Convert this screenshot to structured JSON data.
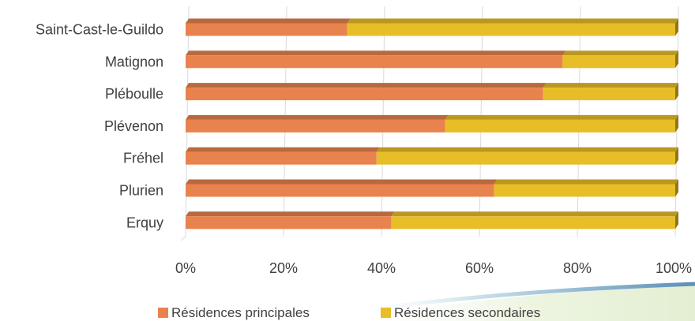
{
  "chart_data": {
    "type": "bar",
    "orientation": "horizontal",
    "stacked": "percent",
    "categories": [
      "Saint-Cast-le-Guildo",
      "Matignon",
      "Pléboulle",
      "Plévenon",
      "Fréhel",
      "Plurien",
      "Erquy"
    ],
    "series": [
      {
        "name": "Résidences principales",
        "color": "#E8834E",
        "values": [
          33,
          77,
          73,
          53,
          39,
          63,
          42
        ]
      },
      {
        "name": "Résidences secondaires",
        "color": "#E8BE28",
        "values": [
          67,
          23,
          27,
          47,
          61,
          37,
          58
        ]
      }
    ],
    "x_ticks": [
      "0%",
      "20%",
      "40%",
      "60%",
      "80%",
      "100%"
    ],
    "xlim": [
      0,
      100
    ],
    "grid": true,
    "legend_position": "bottom",
    "style": "3d-bars"
  }
}
